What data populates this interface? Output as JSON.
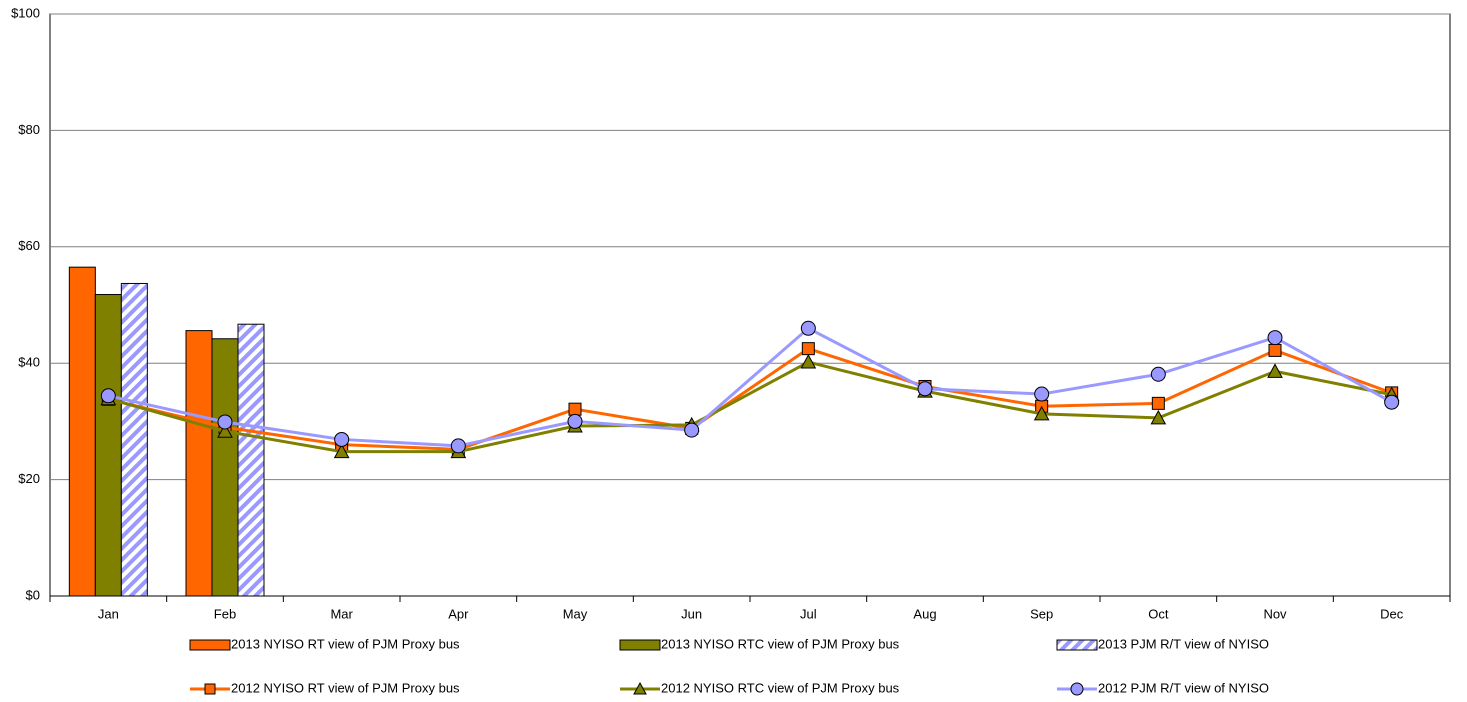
{
  "chart_data": {
    "type": "bar",
    "categories": [
      "Jan",
      "Feb",
      "Mar",
      "Apr",
      "May",
      "Jun",
      "Jul",
      "Aug",
      "Sep",
      "Oct",
      "Nov",
      "Dec"
    ],
    "series": [
      {
        "name": "2013 NYISO RT view of PJM Proxy bus",
        "type": "bar",
        "color": "#ff6600",
        "values": [
          56.5,
          45.6,
          null,
          null,
          null,
          null,
          null,
          null,
          null,
          null,
          null,
          null
        ]
      },
      {
        "name": "2013 NYISO RTC view of PJM Proxy bus",
        "type": "bar",
        "color": "#808000",
        "values": [
          51.8,
          44.2,
          null,
          null,
          null,
          null,
          null,
          null,
          null,
          null,
          null,
          null
        ]
      },
      {
        "name": "2013 PJM R/T view of NYISO",
        "type": "bar",
        "color": "#9999ff",
        "pattern": "hatch",
        "values": [
          53.7,
          46.7,
          null,
          null,
          null,
          null,
          null,
          null,
          null,
          null,
          null,
          null
        ]
      },
      {
        "name": "2012 NYISO RT view of PJM Proxy bus",
        "type": "line",
        "marker": "square",
        "color": "#ff6600",
        "values": [
          33.8,
          29.0,
          26.0,
          25.2,
          32.1,
          28.8,
          42.5,
          36.0,
          32.6,
          33.1,
          42.2,
          34.9
        ]
      },
      {
        "name": "2012 NYISO RTC view of PJM Proxy bus",
        "type": "line",
        "marker": "triangle",
        "color": "#808000",
        "values": [
          33.9,
          28.3,
          24.8,
          24.8,
          29.2,
          29.4,
          40.2,
          35.2,
          31.3,
          30.6,
          38.6,
          34.6
        ]
      },
      {
        "name": "2012 PJM R/T view of NYISO",
        "type": "line",
        "marker": "circle",
        "color": "#9999ff",
        "values": [
          34.4,
          29.9,
          26.9,
          25.8,
          30.0,
          28.5,
          46.0,
          35.6,
          34.7,
          38.1,
          44.4,
          33.3
        ]
      }
    ],
    "ylim": [
      0,
      100
    ],
    "yticks": [
      {
        "value": 0,
        "label": "$0"
      },
      {
        "value": 20,
        "label": "$20"
      },
      {
        "value": 40,
        "label": "$40"
      },
      {
        "value": 60,
        "label": "$60"
      },
      {
        "value": 80,
        "label": "$80"
      },
      {
        "value": 100,
        "label": "$100"
      }
    ],
    "grid": true
  }
}
